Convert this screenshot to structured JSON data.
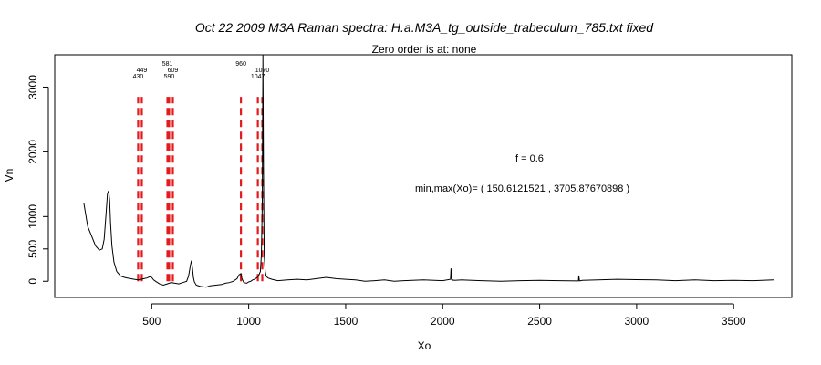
{
  "chart_data": {
    "type": "line",
    "title": "Oct 22 2009 M3A Raman spectra: H.a.M3A_tg_outside_trabeculum_785.txt fixed",
    "subtitle": "Zero order is at:  none",
    "xlabel": "Xo",
    "ylabel": "Vn",
    "xlim": [
      0,
      3800
    ],
    "ylim": [
      -250,
      3500
    ],
    "x_ticks": [
      500,
      1000,
      1500,
      2000,
      2500,
      3000,
      3500
    ],
    "y_ticks": [
      0,
      500,
      1000,
      2000,
      3000
    ],
    "grid": false,
    "annotations": [
      "f =  0.6",
      "min,max(Xo)= ( 150.6121521 , 3705.87670898 )"
    ],
    "peak_markers": [
      {
        "x": 430,
        "label": "430"
      },
      {
        "x": 449,
        "label": "449"
      },
      {
        "x": 581,
        "label": "581"
      },
      {
        "x": 590,
        "label": "590"
      },
      {
        "x": 609,
        "label": "609"
      },
      {
        "x": 960,
        "label": "960"
      },
      {
        "x": 1047,
        "label": "1047"
      },
      {
        "x": 1070,
        "label": "1070"
      }
    ],
    "marker_range": [
      0,
      2850
    ],
    "series": [
      {
        "values_x": [
          150.6,
          170,
          190,
          210,
          230,
          245,
          255,
          265,
          272,
          278,
          283,
          288,
          295,
          305,
          320,
          340,
          360,
          375,
          390,
          410,
          430,
          445,
          460,
          475,
          490,
          500,
          510,
          520,
          540,
          560,
          580,
          600,
          620,
          640,
          660,
          680,
          690,
          700,
          705,
          710,
          715,
          720,
          730,
          750,
          780,
          800,
          830,
          860,
          880,
          900,
          920,
          940,
          950,
          960,
          965,
          975,
          990,
          1000,
          1010,
          1020,
          1030,
          1040,
          1050,
          1060,
          1065,
          1070,
          1073,
          1076,
          1080,
          1085,
          1090,
          1100,
          1120,
          1150,
          1200,
          1250,
          1300,
          1350,
          1400,
          1450,
          1500,
          1550,
          1600,
          1650,
          1700,
          1750,
          1800,
          1900,
          2000,
          2040,
          2043,
          2046,
          2049,
          2052,
          2060,
          2100,
          2200,
          2300,
          2400,
          2500,
          2600,
          2700,
          2702,
          2705,
          2708,
          2711,
          2720,
          2800,
          2900,
          3000,
          3100,
          3200,
          3300,
          3400,
          3500,
          3600,
          3705.9
        ],
        "values_y": [
          1200,
          850,
          700,
          550,
          480,
          500,
          650,
          1050,
          1350,
          1400,
          1250,
          900,
          550,
          300,
          150,
          80,
          60,
          50,
          40,
          30,
          20,
          30,
          40,
          50,
          70,
          60,
          20,
          0,
          -40,
          -60,
          -40,
          -20,
          -30,
          -40,
          -20,
          0,
          80,
          250,
          320,
          200,
          60,
          -10,
          -60,
          -80,
          -90,
          -70,
          -60,
          -50,
          -30,
          -20,
          0,
          40,
          100,
          120,
          40,
          -20,
          -30,
          -10,
          0,
          20,
          30,
          50,
          80,
          150,
          400,
          1200,
          3500,
          1800,
          400,
          150,
          80,
          50,
          30,
          10,
          20,
          30,
          20,
          40,
          60,
          40,
          30,
          20,
          0,
          10,
          20,
          0,
          10,
          20,
          10,
          30,
          200,
          30,
          10,
          20,
          15,
          20,
          10,
          0,
          10,
          15,
          10,
          5,
          90,
          10,
          5,
          10,
          15,
          20,
          30,
          25,
          20,
          10,
          20,
          10,
          15,
          10,
          20
        ]
      }
    ]
  }
}
